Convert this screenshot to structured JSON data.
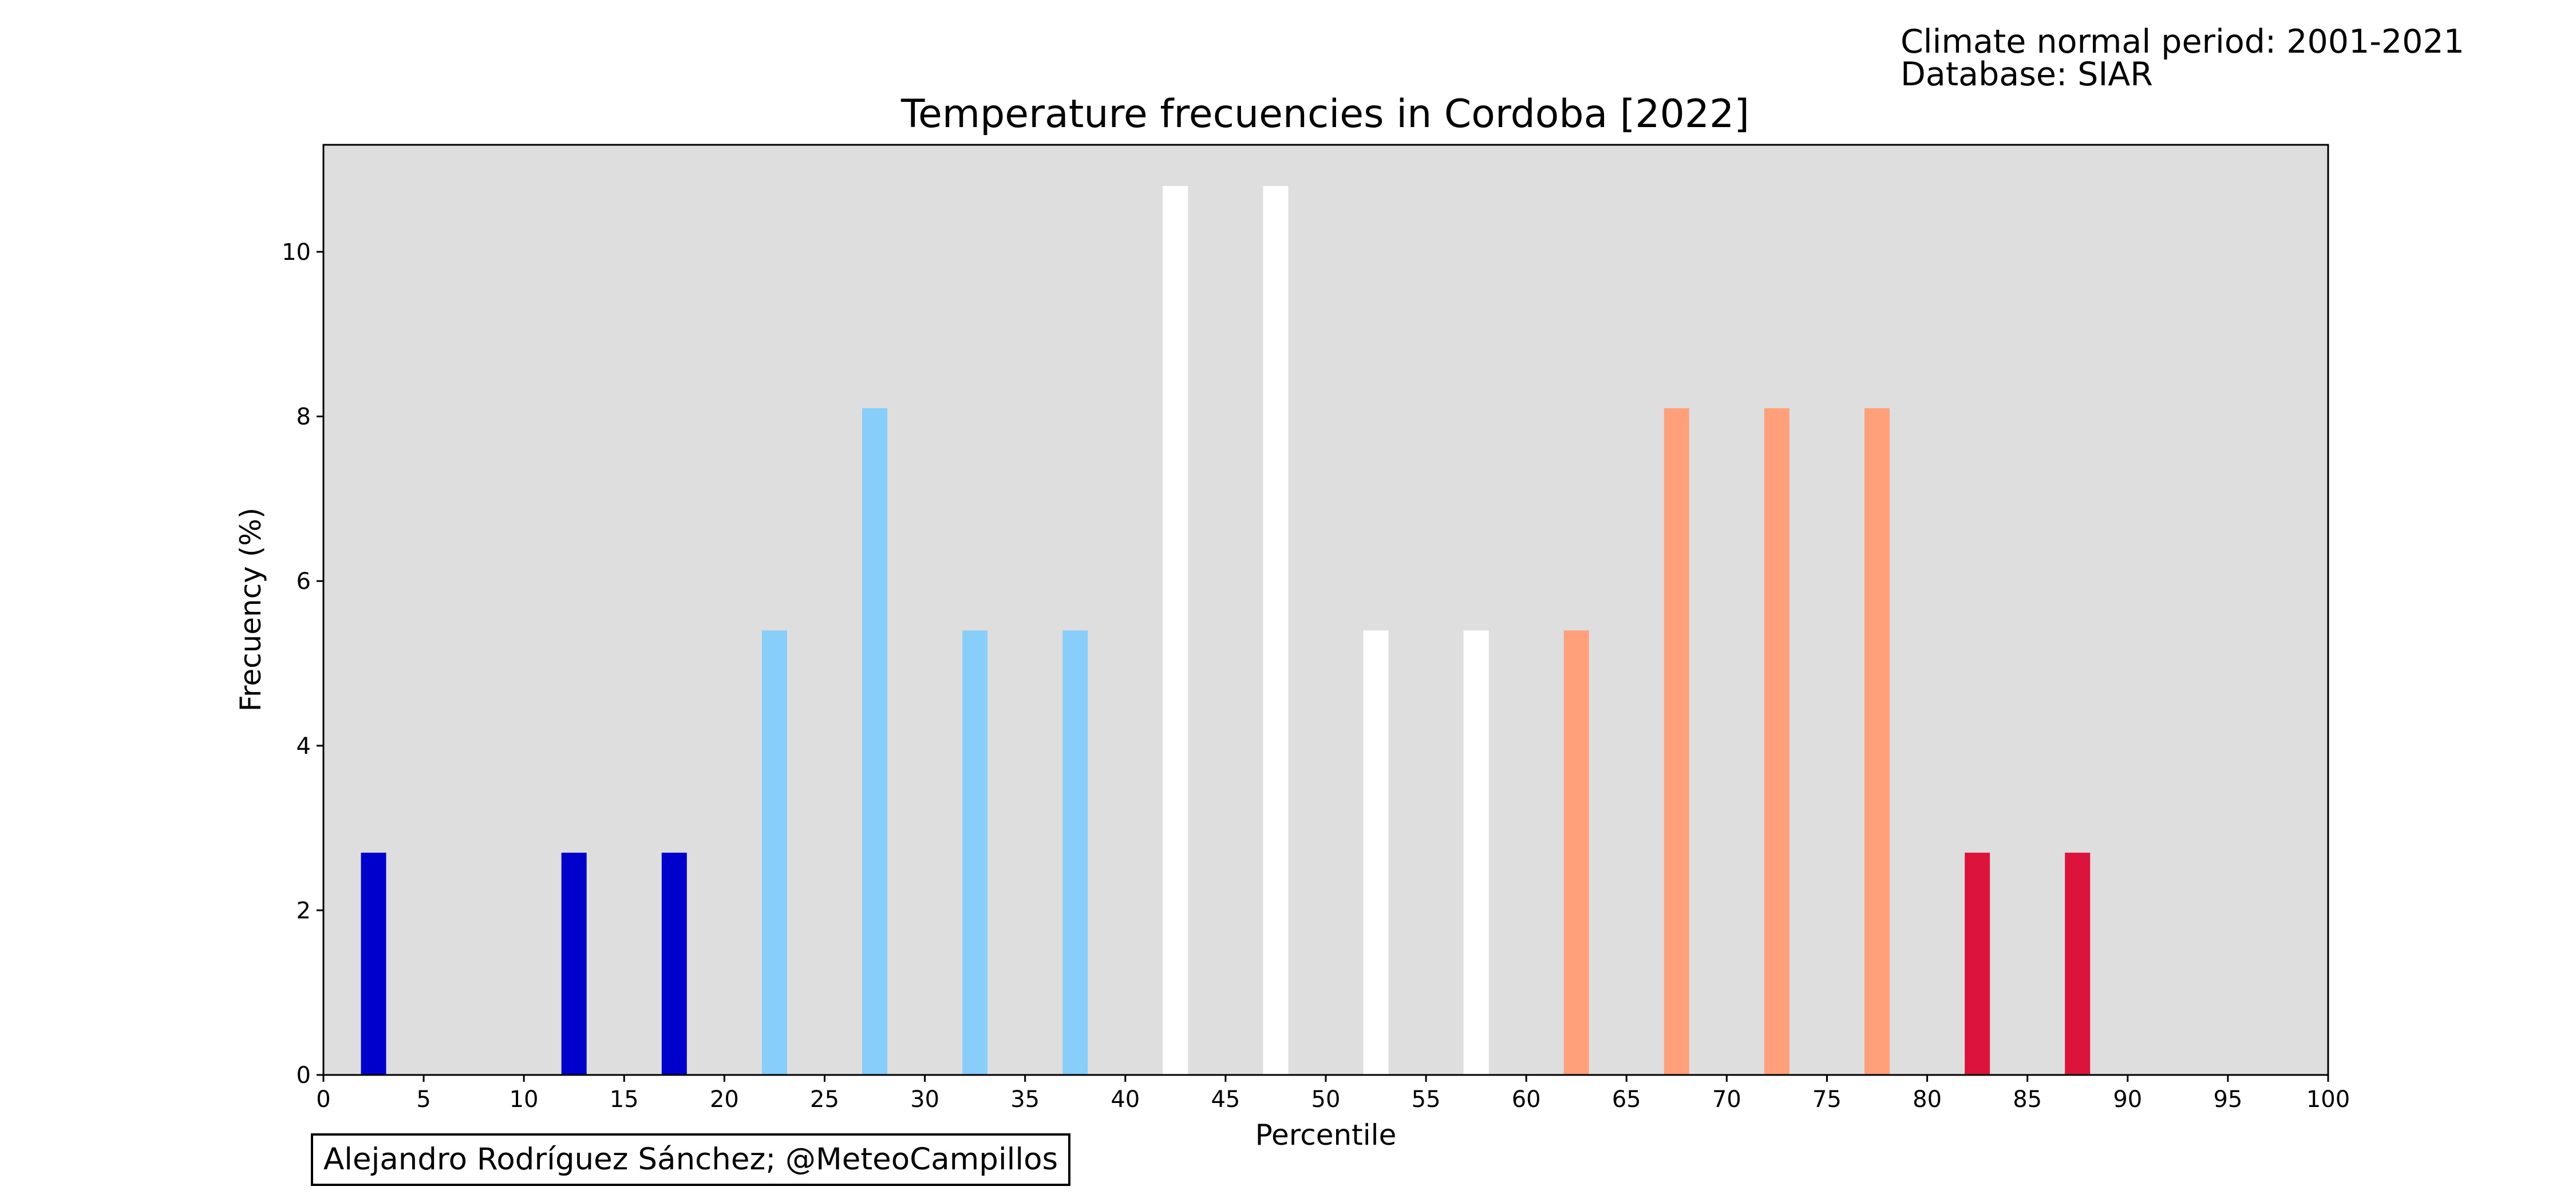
{
  "header": {
    "normal_period": "Climate normal period: 2001-2021",
    "database": "Database: SIAR"
  },
  "credit": "Alejandro Rodríguez Sánchez; @MeteoCampillos",
  "chart_data": {
    "type": "bar",
    "title": "Temperature frecuencies in Cordoba [2022]",
    "xlabel": "Percentile",
    "ylabel": "Frecuency (%)",
    "xlim": [
      0,
      100
    ],
    "ylim": [
      0,
      11.3
    ],
    "x_ticks": [
      0,
      5,
      10,
      15,
      20,
      25,
      30,
      35,
      40,
      45,
      50,
      55,
      60,
      65,
      70,
      75,
      80,
      85,
      90,
      95,
      100
    ],
    "y_ticks": [
      0,
      2,
      4,
      6,
      8,
      10
    ],
    "grid": false,
    "plot_background": "#dedede",
    "bars": [
      {
        "x": 2.5,
        "value": 2.7,
        "color": "#0000cd"
      },
      {
        "x": 12.5,
        "value": 2.7,
        "color": "#0000cd"
      },
      {
        "x": 17.5,
        "value": 2.7,
        "color": "#0000cd"
      },
      {
        "x": 22.5,
        "value": 5.4,
        "color": "#87cefa"
      },
      {
        "x": 27.5,
        "value": 8.1,
        "color": "#87cefa"
      },
      {
        "x": 32.5,
        "value": 5.4,
        "color": "#87cefa"
      },
      {
        "x": 37.5,
        "value": 5.4,
        "color": "#87cefa"
      },
      {
        "x": 42.5,
        "value": 10.8,
        "color": "#ffffff"
      },
      {
        "x": 47.5,
        "value": 10.8,
        "color": "#ffffff"
      },
      {
        "x": 52.5,
        "value": 5.4,
        "color": "#ffffff"
      },
      {
        "x": 57.5,
        "value": 5.4,
        "color": "#ffffff"
      },
      {
        "x": 62.5,
        "value": 5.4,
        "color": "#ffa07a"
      },
      {
        "x": 67.5,
        "value": 8.1,
        "color": "#ffa07a"
      },
      {
        "x": 72.5,
        "value": 8.1,
        "color": "#ffa07a"
      },
      {
        "x": 77.5,
        "value": 8.1,
        "color": "#ffa07a"
      },
      {
        "x": 82.5,
        "value": 2.7,
        "color": "#dc143c"
      },
      {
        "x": 87.5,
        "value": 2.7,
        "color": "#dc143c"
      }
    ]
  }
}
